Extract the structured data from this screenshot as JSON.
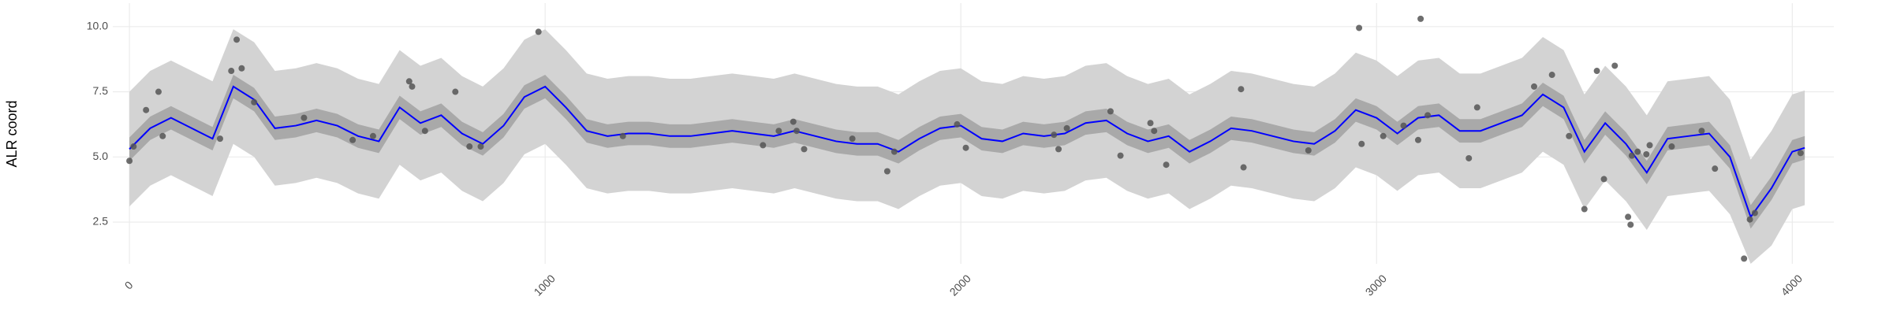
{
  "chart_data": {
    "type": "scatter",
    "y_label": "ALR coord",
    "x": [
      0,
      50,
      100,
      150,
      200,
      250,
      300,
      350,
      400,
      450,
      500,
      550,
      600,
      650,
      700,
      750,
      800,
      850,
      900,
      950,
      1000,
      1050,
      1100,
      1150,
      1200,
      1250,
      1300,
      1350,
      1400,
      1450,
      1500,
      1550,
      1600,
      1650,
      1700,
      1750,
      1800,
      1850,
      1900,
      1950,
      2000,
      2050,
      2100,
      2150,
      2200,
      2250,
      2300,
      2350,
      2400,
      2450,
      2500,
      2550,
      2600,
      2650,
      2700,
      2750,
      2800,
      2850,
      2900,
      2950,
      3000,
      3050,
      3100,
      3150,
      3200,
      3250,
      3300,
      3350,
      3400,
      3450,
      3500,
      3550,
      3600,
      3650,
      3700,
      3750,
      3800,
      3850,
      3900,
      3950,
      4000,
      4030
    ],
    "ribbons": [
      {
        "color": "#d3d3d3",
        "low": [
          3.1,
          3.9,
          4.3,
          3.9,
          3.5,
          5.5,
          5.0,
          3.9,
          4.0,
          4.2,
          4.0,
          3.6,
          3.4,
          4.7,
          4.1,
          4.4,
          3.7,
          3.3,
          4.0,
          5.1,
          5.5,
          4.7,
          3.8,
          3.6,
          3.7,
          3.7,
          3.6,
          3.6,
          3.7,
          3.8,
          3.7,
          3.6,
          3.8,
          3.6,
          3.4,
          3.3,
          3.3,
          3.0,
          3.5,
          3.9,
          4.0,
          3.5,
          3.4,
          3.7,
          3.6,
          3.7,
          4.1,
          4.2,
          3.7,
          3.4,
          3.6,
          3.0,
          3.4,
          3.9,
          3.8,
          3.6,
          3.4,
          3.3,
          3.8,
          4.6,
          4.3,
          3.7,
          4.3,
          4.4,
          3.8,
          3.8,
          4.1,
          4.4,
          5.2,
          4.7,
          3.0,
          4.1,
          3.3,
          2.2,
          3.5,
          3.6,
          3.7,
          2.8,
          0.9,
          1.6,
          3.0,
          3.15
        ],
        "high": [
          7.5,
          8.3,
          8.7,
          8.3,
          7.9,
          9.9,
          9.4,
          8.3,
          8.4,
          8.6,
          8.4,
          8.0,
          7.8,
          9.1,
          8.5,
          8.8,
          8.1,
          7.7,
          8.4,
          9.5,
          9.9,
          9.1,
          8.2,
          8.0,
          8.1,
          8.1,
          8.0,
          8.0,
          8.1,
          8.2,
          8.1,
          8.0,
          8.2,
          8.0,
          7.8,
          7.7,
          7.7,
          7.4,
          7.9,
          8.3,
          8.4,
          7.9,
          7.8,
          8.1,
          8.0,
          8.1,
          8.5,
          8.6,
          8.1,
          7.8,
          8.0,
          7.4,
          7.8,
          8.3,
          8.2,
          8.0,
          7.8,
          7.7,
          8.2,
          9.0,
          8.7,
          8.1,
          8.7,
          8.8,
          8.2,
          8.2,
          8.5,
          8.8,
          9.6,
          9.1,
          7.4,
          8.5,
          7.7,
          6.6,
          7.9,
          8.0,
          8.1,
          7.2,
          4.9,
          6.0,
          7.4,
          7.55
        ]
      },
      {
        "color": "#a9a9a9",
        "low": [
          4.85,
          5.65,
          6.05,
          5.65,
          5.25,
          7.25,
          6.75,
          5.65,
          5.75,
          5.95,
          5.75,
          5.35,
          5.15,
          6.45,
          5.85,
          6.15,
          5.45,
          5.05,
          5.75,
          6.85,
          7.25,
          6.45,
          5.55,
          5.35,
          5.45,
          5.45,
          5.35,
          5.35,
          5.45,
          5.55,
          5.45,
          5.35,
          5.55,
          5.35,
          5.15,
          5.05,
          5.05,
          4.75,
          5.25,
          5.65,
          5.75,
          5.25,
          5.15,
          5.45,
          5.35,
          5.45,
          5.85,
          5.95,
          5.45,
          5.15,
          5.35,
          4.75,
          5.15,
          5.65,
          5.55,
          5.35,
          5.15,
          5.05,
          5.55,
          6.35,
          6.05,
          5.45,
          6.05,
          6.15,
          5.55,
          5.55,
          5.85,
          6.15,
          6.95,
          6.45,
          4.75,
          5.85,
          5.05,
          3.95,
          5.25,
          5.35,
          5.45,
          4.55,
          2.25,
          3.35,
          4.75,
          4.9
        ],
        "high": [
          5.75,
          6.55,
          6.95,
          6.55,
          6.15,
          8.15,
          7.65,
          6.55,
          6.65,
          6.85,
          6.65,
          6.25,
          6.05,
          7.35,
          6.75,
          7.05,
          6.35,
          5.95,
          6.65,
          7.75,
          8.15,
          7.35,
          6.45,
          6.25,
          6.35,
          6.35,
          6.25,
          6.25,
          6.35,
          6.45,
          6.35,
          6.25,
          6.45,
          6.25,
          6.05,
          5.95,
          5.95,
          5.65,
          6.15,
          6.55,
          6.65,
          6.15,
          6.05,
          6.35,
          6.25,
          6.35,
          6.75,
          6.85,
          6.35,
          6.05,
          6.25,
          5.65,
          6.05,
          6.55,
          6.45,
          6.25,
          6.05,
          5.95,
          6.45,
          7.25,
          6.95,
          6.35,
          6.95,
          7.05,
          6.45,
          6.45,
          6.75,
          7.05,
          7.85,
          7.35,
          5.65,
          6.75,
          5.95,
          4.85,
          6.15,
          6.25,
          6.35,
          5.45,
          3.15,
          4.25,
          5.65,
          5.8
        ]
      }
    ],
    "line": {
      "color": "#0000ff",
      "values": [
        5.3,
        6.1,
        6.5,
        6.1,
        5.7,
        7.7,
        7.2,
        6.1,
        6.2,
        6.4,
        6.2,
        5.8,
        5.6,
        6.9,
        6.3,
        6.6,
        5.9,
        5.5,
        6.2,
        7.3,
        7.7,
        6.9,
        6.0,
        5.8,
        5.9,
        5.9,
        5.8,
        5.8,
        5.9,
        6.0,
        5.9,
        5.8,
        6.0,
        5.8,
        5.6,
        5.5,
        5.5,
        5.2,
        5.7,
        6.1,
        6.2,
        5.7,
        5.6,
        5.9,
        5.8,
        5.9,
        6.3,
        6.4,
        5.9,
        5.6,
        5.8,
        5.2,
        5.6,
        6.1,
        6.0,
        5.8,
        5.6,
        5.5,
        6.0,
        6.8,
        6.5,
        5.9,
        6.5,
        6.6,
        6.0,
        6.0,
        6.3,
        6.6,
        7.4,
        6.9,
        5.2,
        6.3,
        5.5,
        4.4,
        5.7,
        5.8,
        5.9,
        5.0,
        2.7,
        3.8,
        5.2,
        5.35
      ]
    },
    "points": {
      "color": "#555555",
      "x": [
        0,
        10,
        40,
        70,
        80,
        218,
        245,
        258,
        270,
        300,
        420,
        537,
        586,
        673,
        680,
        711,
        784,
        818,
        845,
        984,
        1187,
        1524,
        1562,
        1597,
        1605,
        1623,
        1739,
        1823,
        1840,
        1991,
        2012,
        2224,
        2235,
        2255,
        2360,
        2384,
        2456,
        2465,
        2494,
        2674,
        2680,
        2836,
        2958,
        2964,
        3016,
        3065,
        3100,
        3106,
        3123,
        3222,
        3242,
        3379,
        3422,
        3463,
        3500,
        3530,
        3547,
        3573,
        3605,
        3611,
        3614,
        3628,
        3649,
        3657,
        3710,
        3782,
        3814,
        3884,
        3898,
        3910,
        4020
      ],
      "y": [
        4.85,
        5.4,
        6.8,
        7.5,
        5.8,
        5.7,
        8.3,
        9.5,
        8.4,
        7.1,
        6.5,
        5.65,
        5.8,
        7.9,
        7.7,
        6.0,
        7.5,
        5.4,
        5.4,
        9.8,
        5.8,
        5.45,
        6.0,
        6.35,
        6.0,
        5.3,
        5.7,
        4.45,
        5.2,
        6.25,
        5.35,
        5.85,
        5.3,
        6.1,
        6.75,
        5.05,
        6.3,
        6.0,
        4.7,
        7.6,
        4.6,
        5.25,
        9.95,
        5.5,
        5.8,
        6.2,
        5.65,
        10.3,
        6.6,
        4.95,
        6.9,
        7.7,
        8.15,
        5.8,
        3.0,
        8.3,
        4.15,
        8.5,
        2.7,
        2.4,
        5.05,
        5.2,
        5.1,
        5.45,
        5.4,
        6.0,
        4.55,
        1.1,
        2.6,
        2.85,
        5.15
      ]
    },
    "xlim": [
      -40,
      4100
    ],
    "ylim": [
      0.9,
      10.9
    ],
    "xticks": [
      0,
      1000,
      2000,
      3000,
      4000
    ],
    "yticks": [
      2.5,
      {
        "value": 5,
        "label": "5.0"
      },
      7.5,
      {
        "value": 10,
        "label": "10.0"
      }
    ],
    "grid": true
  }
}
